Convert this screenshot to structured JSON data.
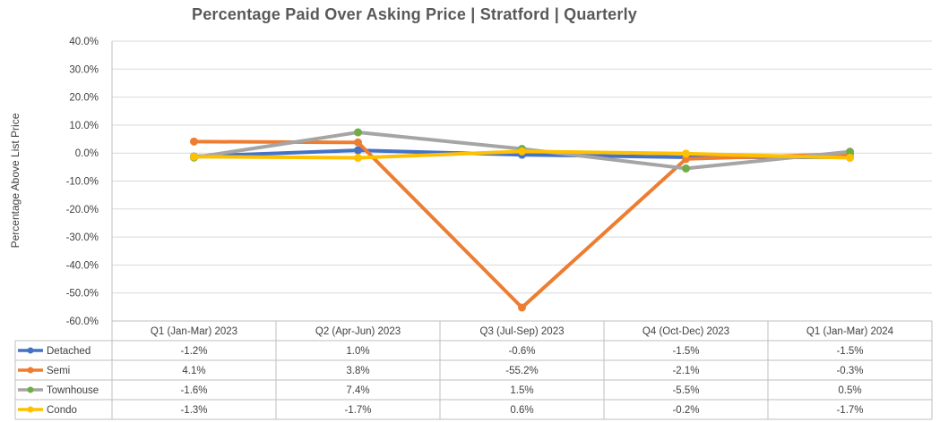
{
  "chart_data": {
    "type": "line",
    "title": "Percentage Paid Over Asking Price | Stratford |  Quarterly",
    "ylabel": "Percentage Above List Price",
    "xlabel": "",
    "ylim": [
      -60,
      40
    ],
    "y_ticks": [
      40,
      30,
      20,
      10,
      0,
      -10,
      -20,
      -30,
      -40,
      -50,
      -60
    ],
    "y_tick_labels": [
      "40.0%",
      "30.0%",
      "20.0%",
      "10.0%",
      "0.0%",
      "-10.0%",
      "-20.0%",
      "-30.0%",
      "-40.0%",
      "-50.0%",
      "-60.0%"
    ],
    "categories": [
      "Q1 (Jan-Mar) 2023",
      "Q2 (Apr-Jun) 2023",
      "Q3 (Jul-Sep) 2023",
      "Q4 (Oct-Dec) 2023",
      "Q1 (Jan-Mar) 2024"
    ],
    "grid": true,
    "legend": "data-table",
    "series": [
      {
        "name": "Detached",
        "color": "#4472C4",
        "values": [
          -1.2,
          1.0,
          -0.6,
          -1.5,
          -1.5
        ],
        "labels": [
          "-1.2%",
          "1.0%",
          "-0.6%",
          "-1.5%",
          "-1.5%"
        ]
      },
      {
        "name": "Semi",
        "color": "#ED7D31",
        "values": [
          4.1,
          3.8,
          -55.2,
          -2.1,
          -0.3
        ],
        "labels": [
          "4.1%",
          "3.8%",
          "-55.2%",
          "-2.1%",
          "-0.3%"
        ]
      },
      {
        "name": "Townhouse",
        "color": "#A5A5A5",
        "marker_color": "#70AD47",
        "values": [
          -1.6,
          7.4,
          1.5,
          -5.5,
          0.5
        ],
        "labels": [
          "-1.6%",
          "7.4%",
          "1.5%",
          "-5.5%",
          "0.5%"
        ]
      },
      {
        "name": "Condo",
        "color": "#FFC000",
        "values": [
          -1.3,
          -1.7,
          0.6,
          -0.2,
          -1.7
        ],
        "labels": [
          "-1.3%",
          "-1.7%",
          "0.6%",
          "-0.2%",
          "-1.7%"
        ]
      }
    ]
  }
}
